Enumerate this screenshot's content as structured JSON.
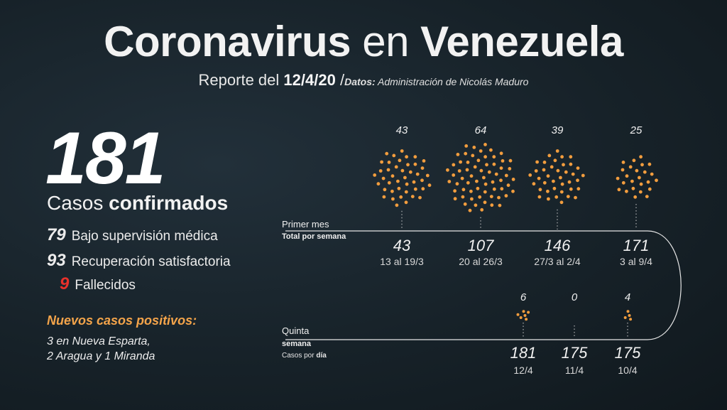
{
  "title_part1": "Coronavirus",
  "title_part2": "en",
  "title_part3": "Venezuela",
  "subtitle_prefix": "Reporte del",
  "subtitle_date": "12/4/20",
  "subtitle_sep": "/",
  "source_label": "Datos:",
  "source_text": "Administración de Nicolás Maduro",
  "total_cases": "181",
  "total_label_1": "Casos",
  "total_label_2": "confirmados",
  "stats": [
    {
      "value": "79",
      "label": "Bajo supervisión médica"
    },
    {
      "value": "93",
      "label": "Recuperación satisfactoria"
    },
    {
      "value": "9",
      "label": "Fallecidos"
    }
  ],
  "new_cases_title": "Nuevos casos positivos:",
  "new_cases_line1": "3 en Nueva Esparta,",
  "new_cases_line2": "2 Aragua y 1 Miranda",
  "colors": {
    "accent": "#f4a44a",
    "dot": "#f29d3e",
    "death": "#e8312b",
    "line": "#e6e6e6"
  },
  "chart_data": [
    {
      "type": "pictogram",
      "title": "Primer mes",
      "subtitle": "Total por semana",
      "categories": [
        "13 al 19/3",
        "20 al 26/3",
        "27/3 al 2/4",
        "3 al 9/4"
      ],
      "values": [
        43,
        64,
        39,
        25
      ],
      "cumulative": [
        43,
        107,
        146,
        171
      ]
    },
    {
      "type": "pictogram",
      "title": "Quinta semana",
      "subtitle_prefix": "Casos por",
      "subtitle_bold": "día",
      "categories": [
        "12/4",
        "11/4",
        "10/4"
      ],
      "values": [
        6,
        0,
        4
      ],
      "cumulative": [
        181,
        175,
        175
      ]
    }
  ]
}
